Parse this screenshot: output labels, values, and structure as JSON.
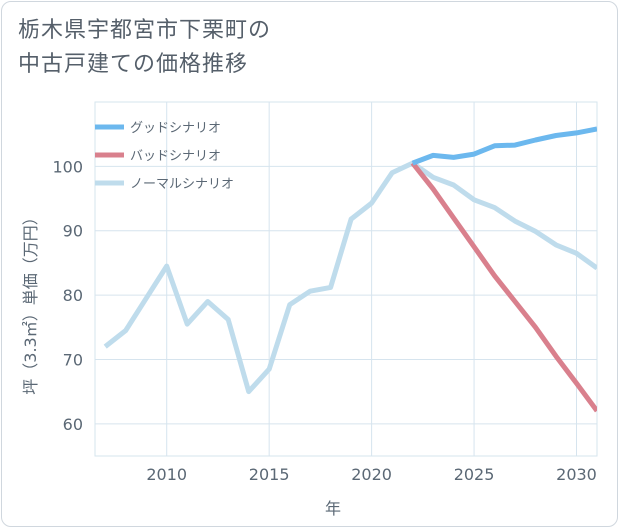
{
  "title": {
    "line1": "栃木県宇都宮市下栗町の",
    "line2": "中古戸建ての価格推移"
  },
  "colors": {
    "good": "#6cb8ee",
    "bad": "#d9808d",
    "normal": "#bfdcec",
    "grid": "#d6e4ee"
  },
  "chart_data": {
    "type": "line",
    "title": "栃木県宇都宮市下栗町の中古戸建ての価格推移",
    "xlabel": "年",
    "ylabel": "坪（3.3㎡）単価（万円）",
    "xlim": [
      2006.5,
      2031
    ],
    "ylim": [
      55,
      110
    ],
    "xticks": [
      2010,
      2015,
      2020,
      2025,
      2030
    ],
    "yticks": [
      60,
      70,
      80,
      90,
      100
    ],
    "legend_position": "top-left",
    "series": [
      {
        "name": "グッドシナリオ",
        "color_key": "good",
        "x": [
          2022,
          2023,
          2024,
          2025,
          2026,
          2027,
          2028,
          2029,
          2030,
          2031
        ],
        "values": [
          100.5,
          101.7,
          101.4,
          101.9,
          103.2,
          103.3,
          104.1,
          104.8,
          105.2,
          105.8
        ]
      },
      {
        "name": "バッドシナリオ",
        "color_key": "bad",
        "x": [
          2022,
          2023,
          2024,
          2025,
          2026,
          2027,
          2028,
          2029,
          2030,
          2031
        ],
        "values": [
          100.5,
          96.5,
          92.0,
          87.5,
          83.0,
          79.0,
          75.0,
          70.5,
          66.3,
          62.0
        ]
      },
      {
        "name": "ノーマルシナリオ",
        "color_key": "normal",
        "x": [
          2007,
          2008,
          2009,
          2010,
          2011,
          2012,
          2013,
          2014,
          2015,
          2016,
          2017,
          2018,
          2019,
          2020,
          2021,
          2022,
          2023,
          2024,
          2025,
          2026,
          2027,
          2028,
          2029,
          2030,
          2031
        ],
        "values": [
          72.0,
          74.5,
          79.5,
          84.5,
          75.5,
          79.0,
          76.2,
          65.0,
          68.5,
          78.5,
          80.6,
          81.2,
          91.8,
          94.3,
          99.0,
          100.5,
          98.3,
          97.1,
          94.8,
          93.6,
          91.5,
          89.9,
          87.8,
          86.5,
          84.2
        ]
      }
    ]
  }
}
